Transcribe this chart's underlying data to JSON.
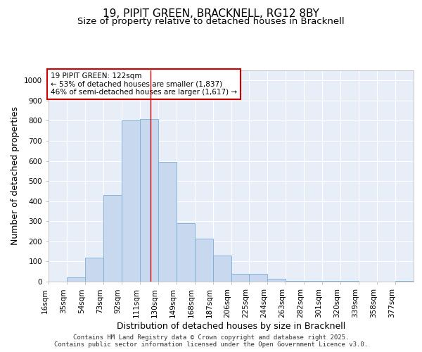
{
  "title1": "19, PIPIT GREEN, BRACKNELL, RG12 8BY",
  "title2": "Size of property relative to detached houses in Bracknell",
  "xlabel": "Distribution of detached houses by size in Bracknell",
  "ylabel": "Number of detached properties",
  "bin_edges": [
    16,
    35,
    54,
    73,
    92,
    111,
    130,
    149,
    168,
    187,
    206,
    225,
    244,
    263,
    282,
    301,
    320,
    339,
    358,
    377,
    396
  ],
  "bar_heights": [
    0,
    20,
    120,
    430,
    800,
    810,
    595,
    290,
    215,
    130,
    40,
    40,
    15,
    5,
    5,
    5,
    5,
    0,
    0,
    5
  ],
  "bar_color": "#c8d8ee",
  "bar_edge_color": "#7aadd4",
  "vline_x": 122,
  "vline_color": "#cc0000",
  "annotation_text": "19 PIPIT GREEN: 122sqm\n← 53% of detached houses are smaller (1,837)\n46% of semi-detached houses are larger (1,617) →",
  "annotation_box_color": "#ffffff",
  "annotation_box_edge_color": "#cc0000",
  "ylim": [
    0,
    1050
  ],
  "yticks": [
    0,
    100,
    200,
    300,
    400,
    500,
    600,
    700,
    800,
    900,
    1000
  ],
  "background_color": "#e8eef8",
  "grid_color": "#ffffff",
  "footer_text": "Contains HM Land Registry data © Crown copyright and database right 2025.\nContains public sector information licensed under the Open Government Licence v3.0.",
  "title1_fontsize": 11,
  "title2_fontsize": 9.5,
  "tick_fontsize": 7.5,
  "label_fontsize": 9,
  "annotation_fontsize": 7.5,
  "footer_fontsize": 6.5
}
